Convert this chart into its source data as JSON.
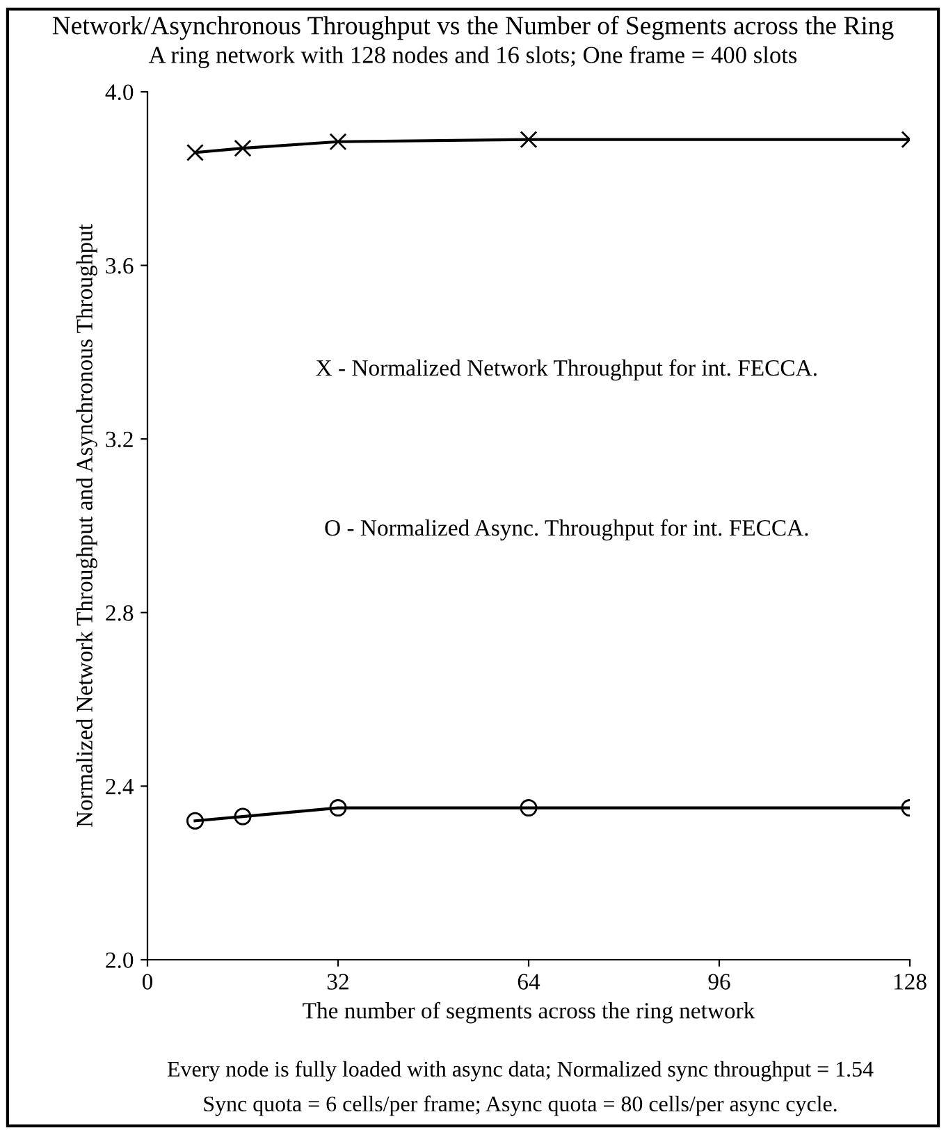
{
  "chart_data": {
    "type": "line",
    "title": "Network/Asynchronous Throughput vs the Number of Segments across the Ring",
    "subtitle": "A ring network with 128 nodes and 16 slots; One frame = 400 slots",
    "xlabel": "The number of segments across the ring network",
    "ylabel": "Normalized Network Throughput and Asynchronous Throughput",
    "x": [
      8,
      16,
      32,
      64,
      128
    ],
    "series": [
      {
        "color": "#000000",
        "marker": "cross",
        "values": [
          3.86,
          3.87,
          3.885,
          3.89,
          3.89
        ]
      },
      {
        "color": "#000000",
        "marker": "circle",
        "values": [
          2.32,
          2.33,
          2.35,
          2.35,
          2.35
        ]
      }
    ],
    "xlim": [
      0,
      128
    ],
    "xticks": [
      0,
      32,
      64,
      96,
      128
    ],
    "ylim": [
      2.0,
      4.0
    ],
    "yticks": [
      {
        "value": 2.0,
        "label": "2.0"
      },
      {
        "value": 2.4,
        "label": "2.4"
      },
      {
        "value": 2.8,
        "label": "2.8"
      },
      {
        "value": 3.2,
        "label": "3.2"
      },
      {
        "value": 3.6,
        "label": "3.6"
      },
      {
        "value": 4.0,
        "label": "4.0"
      }
    ],
    "grid": false,
    "legend": false,
    "line_style": "solid",
    "annotations": [
      "X - Normalized Network Throughput for int. FECCA.",
      "O - Normalized Async. Throughput for int. FECCA.",
      "Every node is fully loaded with async data; Normalized sync throughput = 1.54",
      "Sync quota = 6 cells/per frame; Async quota = 80 cells/per async cycle."
    ]
  }
}
